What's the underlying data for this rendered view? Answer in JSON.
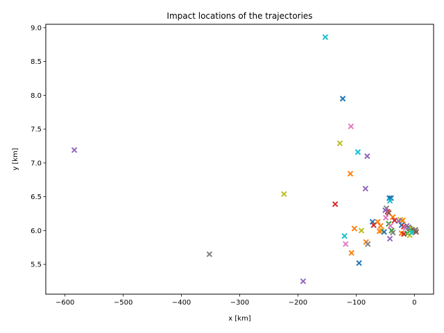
{
  "chart_data": {
    "type": "scatter",
    "title": "Impact locations of the trajectories",
    "xlabel": "x [km]",
    "ylabel": "y [km]",
    "xlim": [
      -633,
      33
    ],
    "ylim": [
      5.06,
      9.05
    ],
    "xticks": [
      -600,
      -500,
      -400,
      -300,
      -200,
      -100,
      0
    ],
    "yticks": [
      5.5,
      6.0,
      6.5,
      7.0,
      7.5,
      8.0,
      8.5,
      9.0
    ],
    "xtick_labels": [
      "−600",
      "−500",
      "−400",
      "−300",
      "−200",
      "−100",
      "0"
    ],
    "ytick_labels": [
      "5.5",
      "6.0",
      "6.5",
      "7.0",
      "7.5",
      "8.0",
      "8.5",
      "9.0"
    ],
    "grid": false,
    "marker": "x",
    "palette": [
      "#1f77b4",
      "#ff7f0e",
      "#2ca02c",
      "#d62728",
      "#9467bd",
      "#8c564b",
      "#e377c2",
      "#7f7f7f",
      "#bcbd22",
      "#17becf"
    ],
    "points": [
      {
        "x": -153,
        "y": 8.86,
        "c": 9
      },
      {
        "x": -123,
        "y": 7.95,
        "c": 0
      },
      {
        "x": -109,
        "y": 7.54,
        "c": 6
      },
      {
        "x": -128,
        "y": 7.29,
        "c": 8
      },
      {
        "x": -97,
        "y": 7.16,
        "c": 9
      },
      {
        "x": -81,
        "y": 7.1,
        "c": 4
      },
      {
        "x": -584,
        "y": 7.19,
        "c": 4
      },
      {
        "x": -110,
        "y": 6.84,
        "c": 1
      },
      {
        "x": -84,
        "y": 6.62,
        "c": 4
      },
      {
        "x": -224,
        "y": 6.54,
        "c": 8
      },
      {
        "x": -136,
        "y": 6.39,
        "c": 3
      },
      {
        "x": -43,
        "y": 6.48,
        "c": 0
      },
      {
        "x": -40,
        "y": 6.48,
        "c": 0
      },
      {
        "x": -42,
        "y": 6.44,
        "c": 9
      },
      {
        "x": -48,
        "y": 6.33,
        "c": 7
      },
      {
        "x": -46,
        "y": 6.28,
        "c": 3
      },
      {
        "x": -44,
        "y": 6.26,
        "c": 5
      },
      {
        "x": -50,
        "y": 6.3,
        "c": 4
      },
      {
        "x": -37,
        "y": 6.2,
        "c": 1
      },
      {
        "x": -49,
        "y": 6.19,
        "c": 6
      },
      {
        "x": -34,
        "y": 6.15,
        "c": 3
      },
      {
        "x": -24,
        "y": 6.16,
        "c": 8
      },
      {
        "x": -20,
        "y": 6.15,
        "c": 1
      },
      {
        "x": -27,
        "y": 6.14,
        "c": 4
      },
      {
        "x": -72,
        "y": 6.13,
        "c": 0
      },
      {
        "x": -63,
        "y": 6.13,
        "c": 1
      },
      {
        "x": -70,
        "y": 6.08,
        "c": 3
      },
      {
        "x": -58,
        "y": 6.07,
        "c": 1
      },
      {
        "x": -44,
        "y": 6.1,
        "c": 2
      },
      {
        "x": -41,
        "y": 6.07,
        "c": 6
      },
      {
        "x": -22,
        "y": 6.08,
        "c": 0
      },
      {
        "x": -18,
        "y": 6.06,
        "c": 3
      },
      {
        "x": -15,
        "y": 6.04,
        "c": 6
      },
      {
        "x": -13,
        "y": 6.07,
        "c": 4
      },
      {
        "x": -10,
        "y": 6.05,
        "c": 7
      },
      {
        "x": -8,
        "y": 6.03,
        "c": 5
      },
      {
        "x": -6,
        "y": 6.01,
        "c": 9
      },
      {
        "x": -4,
        "y": 6.02,
        "c": 8
      },
      {
        "x": -2,
        "y": 5.99,
        "c": 2
      },
      {
        "x": 0,
        "y": 6.0,
        "c": 5
      },
      {
        "x": 2,
        "y": 6.01,
        "c": 7
      },
      {
        "x": 3,
        "y": 5.98,
        "c": 5
      },
      {
        "x": -103,
        "y": 6.03,
        "c": 1
      },
      {
        "x": -91,
        "y": 6.0,
        "c": 8
      },
      {
        "x": -56,
        "y": 6.0,
        "c": 8
      },
      {
        "x": -52,
        "y": 5.98,
        "c": 0
      },
      {
        "x": -60,
        "y": 5.99,
        "c": 1
      },
      {
        "x": -39,
        "y": 6.0,
        "c": 2
      },
      {
        "x": -37,
        "y": 5.97,
        "c": 7
      },
      {
        "x": -22,
        "y": 5.96,
        "c": 1
      },
      {
        "x": -18,
        "y": 5.95,
        "c": 3
      },
      {
        "x": -12,
        "y": 5.96,
        "c": 2
      },
      {
        "x": -8,
        "y": 5.93,
        "c": 8
      },
      {
        "x": -5,
        "y": 5.97,
        "c": 9
      },
      {
        "x": -120,
        "y": 5.92,
        "c": 9
      },
      {
        "x": -42,
        "y": 5.88,
        "c": 4
      },
      {
        "x": -83,
        "y": 5.83,
        "c": 1
      },
      {
        "x": -80,
        "y": 5.8,
        "c": 7
      },
      {
        "x": -118,
        "y": 5.8,
        "c": 6
      },
      {
        "x": -108,
        "y": 5.67,
        "c": 1
      },
      {
        "x": -95,
        "y": 5.52,
        "c": 0
      },
      {
        "x": -352,
        "y": 5.65,
        "c": 7
      },
      {
        "x": -191,
        "y": 5.25,
        "c": 4
      }
    ]
  }
}
